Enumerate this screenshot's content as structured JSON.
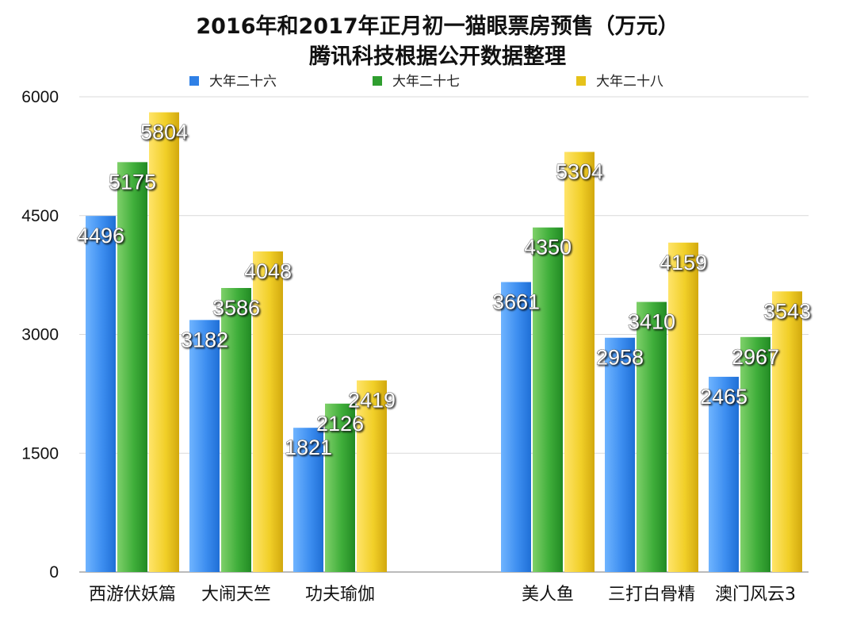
{
  "chart_data": {
    "type": "bar",
    "title": "2016年和2017年正月初一猫眼票房预售（万元）",
    "subtitle": "腾讯科技根据公开数据整理",
    "categories": [
      "西游伏妖篇",
      "大闹天竺",
      "功夫瑜伽",
      "",
      "美人鱼",
      "三打白骨精",
      "澳门风云3"
    ],
    "series": [
      {
        "name": "大年二十六",
        "color": "#2f80e6",
        "values": [
          4496,
          3182,
          1821,
          null,
          3661,
          2958,
          2465
        ]
      },
      {
        "name": "大年二十七",
        "color": "#2f9e2f",
        "values": [
          5175,
          3586,
          2126,
          null,
          4350,
          3410,
          2967
        ]
      },
      {
        "name": "大年二十八",
        "color": "#e6c21a",
        "values": [
          5804,
          4048,
          2419,
          null,
          5304,
          4159,
          3543
        ]
      }
    ],
    "yticks": [
      0,
      1500,
      3000,
      4500,
      6000
    ],
    "ylim": [
      0,
      6000
    ],
    "grid": true,
    "legend_position": "top"
  }
}
